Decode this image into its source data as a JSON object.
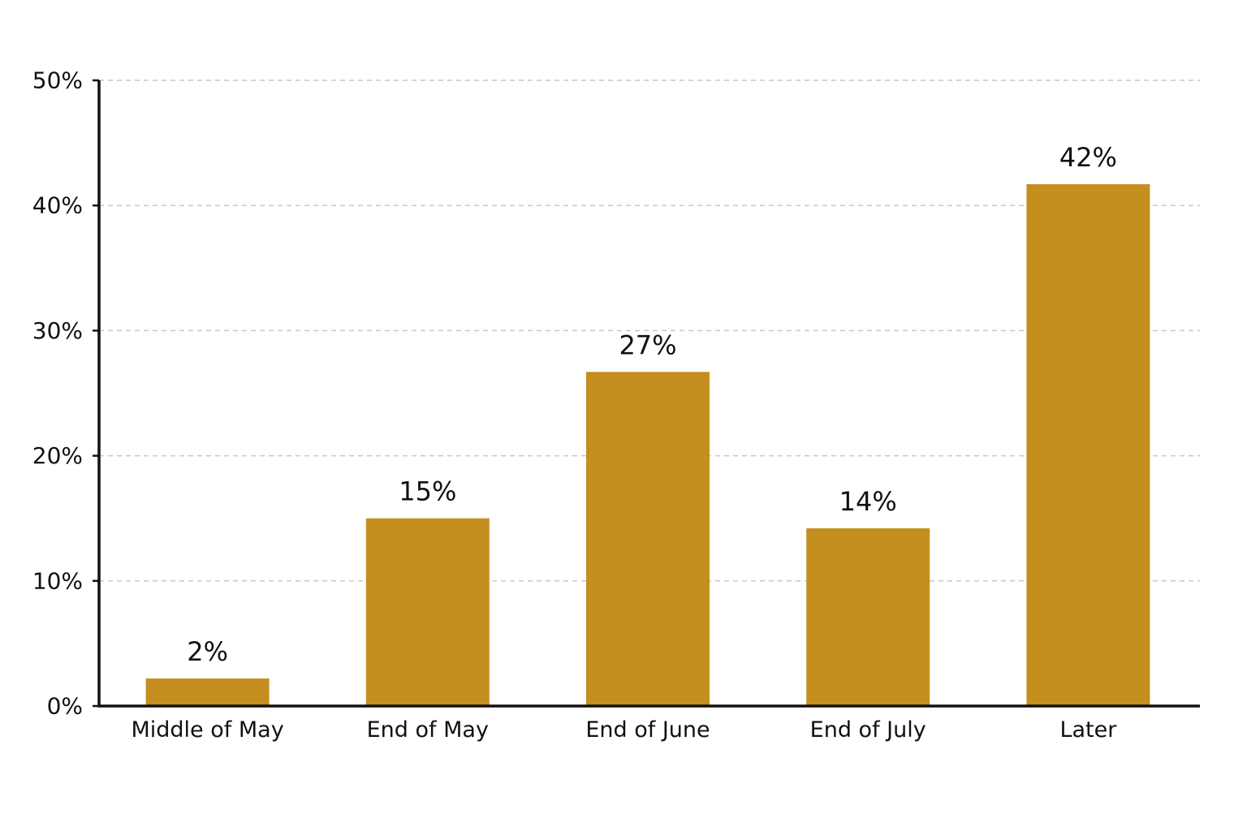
{
  "chart_data": {
    "type": "bar",
    "title": "",
    "xlabel": "",
    "ylabel": "",
    "categories": [
      "Middle of May",
      "End of May",
      "End of June",
      "End of July",
      "Later"
    ],
    "values": [
      2.2,
      15,
      26.7,
      14.2,
      41.7
    ],
    "data_labels": [
      "2%",
      "15%",
      "27%",
      "14%",
      "42%"
    ],
    "ylim": [
      0,
      50
    ],
    "yticks": [
      0,
      10,
      20,
      30,
      40,
      50
    ],
    "ytick_labels": [
      "0%",
      "10%",
      "20%",
      "30%",
      "40%",
      "50%"
    ],
    "grid": true,
    "legend": "none",
    "bar_color": "#c48f1f",
    "axis_color": "#111111",
    "grid_color": "#c8c8c8"
  }
}
